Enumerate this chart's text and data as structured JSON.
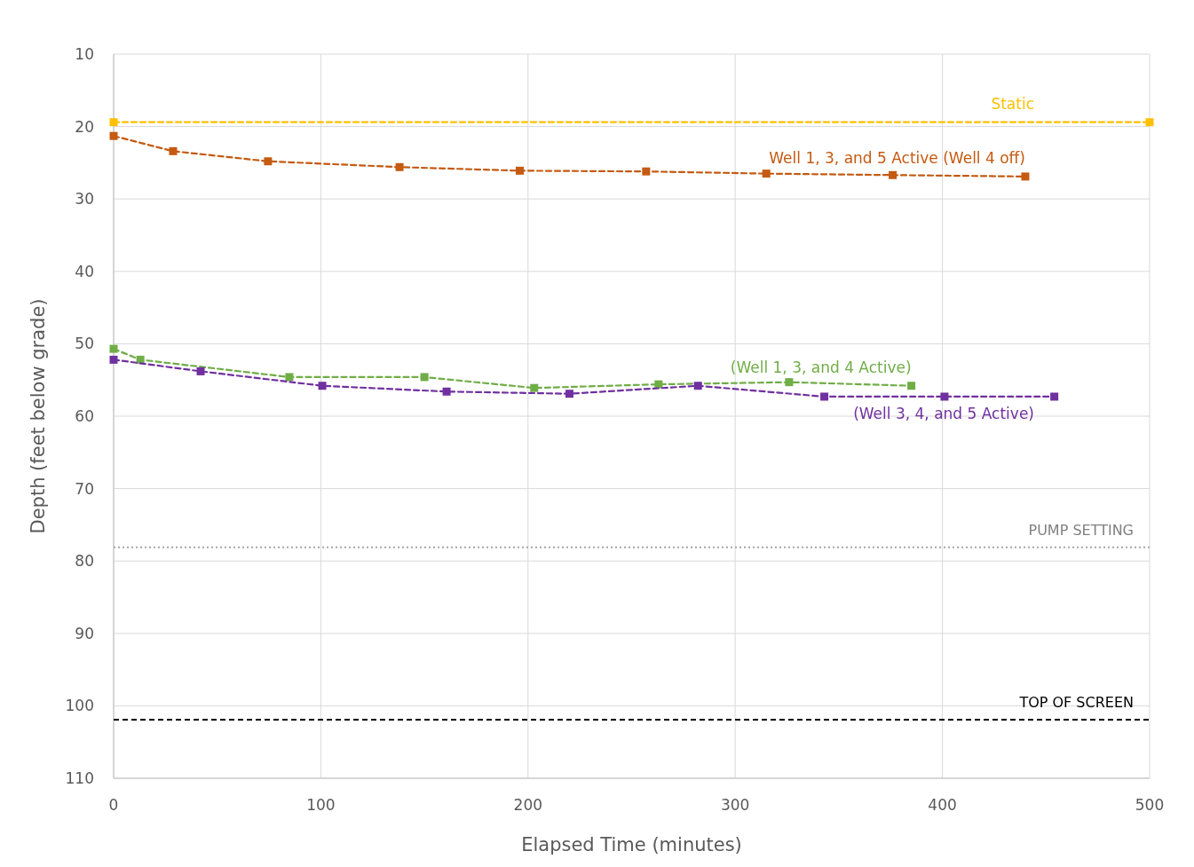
{
  "chart_data": {
    "type": "line",
    "xlabel": "Elapsed Time (minutes)",
    "ylabel": "Depth (feet below grade)",
    "xlim": [
      0,
      500
    ],
    "xticks": [
      0,
      100,
      200,
      300,
      400,
      500
    ],
    "ylim": [
      110,
      10
    ],
    "yticks": [
      10,
      20,
      30,
      40,
      50,
      60,
      70,
      80,
      90,
      100,
      110
    ],
    "grid": true,
    "marker": "square",
    "line_style": "dashed",
    "series": [
      {
        "name": "Static",
        "color": "#ffc000",
        "x": [
          0,
          500
        ],
        "values": [
          19.4,
          19.4
        ]
      },
      {
        "name": "Well 1, 3, and 5 Active (Well 4 off)",
        "color": "#c55a11",
        "x": [
          0,
          28.7,
          74.5,
          138,
          196,
          257,
          315,
          376,
          440
        ],
        "values": [
          21.3,
          23.4,
          24.8,
          25.6,
          26.1,
          26.2,
          26.5,
          26.7,
          26.9
        ]
      },
      {
        "name": "(Well 1, 3, and 4 Active)",
        "color": "#70ad47",
        "x": [
          0,
          12.9,
          84.8,
          150,
          203,
          263,
          326,
          385
        ],
        "values": [
          50.7,
          52.2,
          54.6,
          54.6,
          56.1,
          55.6,
          55.3,
          55.8
        ]
      },
      {
        "name": "(Well 3, 4, and 5 Active)",
        "color": "#7030a0",
        "x": [
          0,
          42,
          100.7,
          160.7,
          220,
          282,
          343,
          401,
          454
        ],
        "values": [
          52.2,
          53.8,
          55.8,
          56.6,
          56.9,
          55.8,
          57.3,
          57.3,
          57.3
        ]
      }
    ],
    "ref_lines": [
      {
        "axis": "y",
        "value": 78.1,
        "label": "PUMP SETTING",
        "color": "#a6a6a6",
        "line_style": "dotted"
      },
      {
        "axis": "y",
        "value": 101.9,
        "label": "TOP OF SCREEN",
        "color": "#000000",
        "line_style": "dashed"
      }
    ]
  }
}
